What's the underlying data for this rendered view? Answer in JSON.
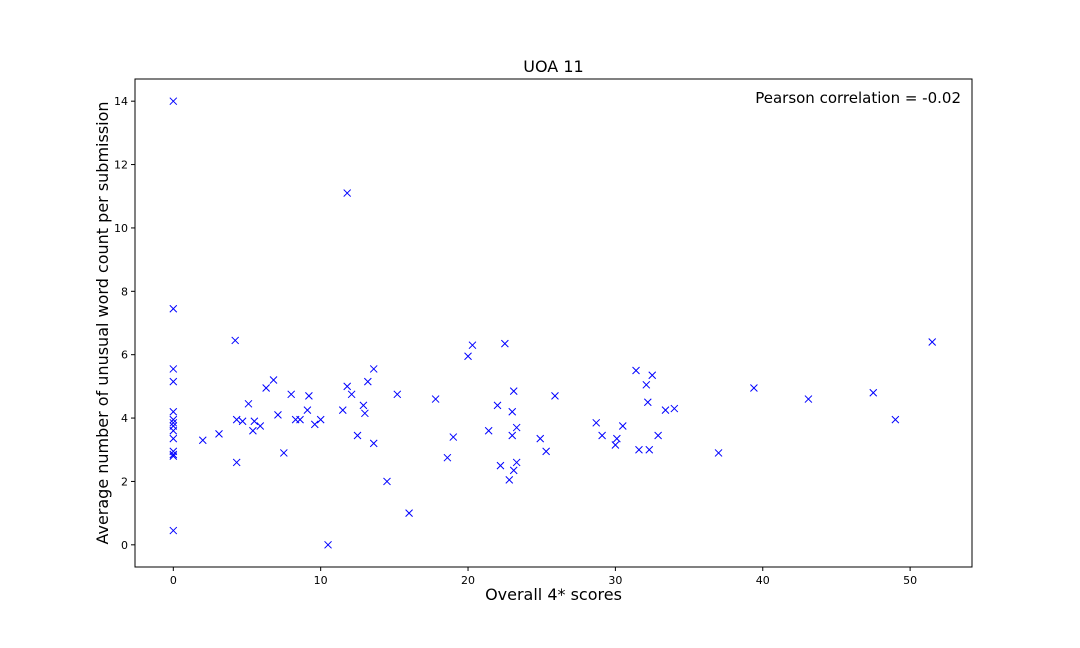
{
  "chart_data": {
    "type": "scatter",
    "title": "UOA 11",
    "xlabel": "Overall 4* scores",
    "ylabel": "Average number of unusual word count per submission",
    "annotation": "Pearson correlation = -0.02",
    "xlim": [
      -2.6,
      54.2
    ],
    "ylim": [
      -0.7,
      14.7
    ],
    "xticks": [
      0,
      10,
      20,
      30,
      40,
      50
    ],
    "yticks": [
      0,
      2,
      4,
      6,
      8,
      10,
      12,
      14
    ],
    "grid": false,
    "marker": "x",
    "color": "#0000ff",
    "points": [
      [
        0,
        14.0
      ],
      [
        0,
        7.45
      ],
      [
        0,
        5.55
      ],
      [
        0,
        5.15
      ],
      [
        0,
        4.2
      ],
      [
        0,
        3.95
      ],
      [
        0,
        3.85
      ],
      [
        0,
        3.75
      ],
      [
        0,
        3.6
      ],
      [
        0,
        3.35
      ],
      [
        0,
        2.95
      ],
      [
        0,
        2.85
      ],
      [
        0,
        2.8
      ],
      [
        0,
        0.45
      ],
      [
        2.0,
        3.3
      ],
      [
        3.1,
        3.5
      ],
      [
        4.2,
        6.45
      ],
      [
        4.3,
        3.95
      ],
      [
        4.3,
        2.6
      ],
      [
        4.7,
        3.9
      ],
      [
        5.1,
        4.45
      ],
      [
        5.4,
        3.6
      ],
      [
        5.5,
        3.9
      ],
      [
        5.9,
        3.75
      ],
      [
        6.3,
        4.95
      ],
      [
        6.8,
        5.2
      ],
      [
        7.1,
        4.1
      ],
      [
        7.5,
        2.9
      ],
      [
        8.0,
        4.75
      ],
      [
        8.3,
        3.95
      ],
      [
        8.6,
        3.95
      ],
      [
        9.1,
        4.25
      ],
      [
        9.2,
        4.7
      ],
      [
        9.6,
        3.8
      ],
      [
        10.0,
        3.95
      ],
      [
        10.5,
        0.0
      ],
      [
        11.5,
        4.25
      ],
      [
        11.8,
        5.0
      ],
      [
        11.8,
        11.1
      ],
      [
        12.1,
        4.75
      ],
      [
        12.5,
        3.45
      ],
      [
        12.9,
        4.4
      ],
      [
        13.0,
        4.15
      ],
      [
        13.2,
        5.15
      ],
      [
        13.6,
        5.55
      ],
      [
        13.6,
        3.2
      ],
      [
        14.5,
        2.0
      ],
      [
        15.2,
        4.75
      ],
      [
        16.0,
        1.0
      ],
      [
        17.8,
        4.6
      ],
      [
        18.6,
        2.75
      ],
      [
        19.0,
        3.4
      ],
      [
        20.0,
        5.95
      ],
      [
        20.3,
        6.3
      ],
      [
        21.4,
        3.6
      ],
      [
        22.0,
        4.4
      ],
      [
        22.2,
        2.5
      ],
      [
        22.5,
        6.35
      ],
      [
        22.8,
        2.05
      ],
      [
        23.0,
        4.2
      ],
      [
        23.0,
        3.45
      ],
      [
        23.1,
        4.85
      ],
      [
        23.1,
        2.35
      ],
      [
        23.3,
        3.7
      ],
      [
        23.3,
        2.6
      ],
      [
        24.9,
        3.35
      ],
      [
        25.3,
        2.95
      ],
      [
        25.9,
        4.7
      ],
      [
        28.7,
        3.85
      ],
      [
        29.1,
        3.45
      ],
      [
        30.0,
        3.15
      ],
      [
        30.1,
        3.35
      ],
      [
        30.5,
        3.75
      ],
      [
        31.4,
        5.5
      ],
      [
        31.6,
        3.0
      ],
      [
        32.1,
        5.05
      ],
      [
        32.2,
        4.5
      ],
      [
        32.3,
        3.0
      ],
      [
        32.5,
        5.35
      ],
      [
        32.9,
        3.45
      ],
      [
        33.4,
        4.25
      ],
      [
        34.0,
        4.3
      ],
      [
        37.0,
        2.9
      ],
      [
        39.4,
        4.95
      ],
      [
        43.1,
        4.6
      ],
      [
        47.5,
        4.8
      ],
      [
        49.0,
        3.95
      ],
      [
        51.5,
        6.4
      ]
    ]
  }
}
